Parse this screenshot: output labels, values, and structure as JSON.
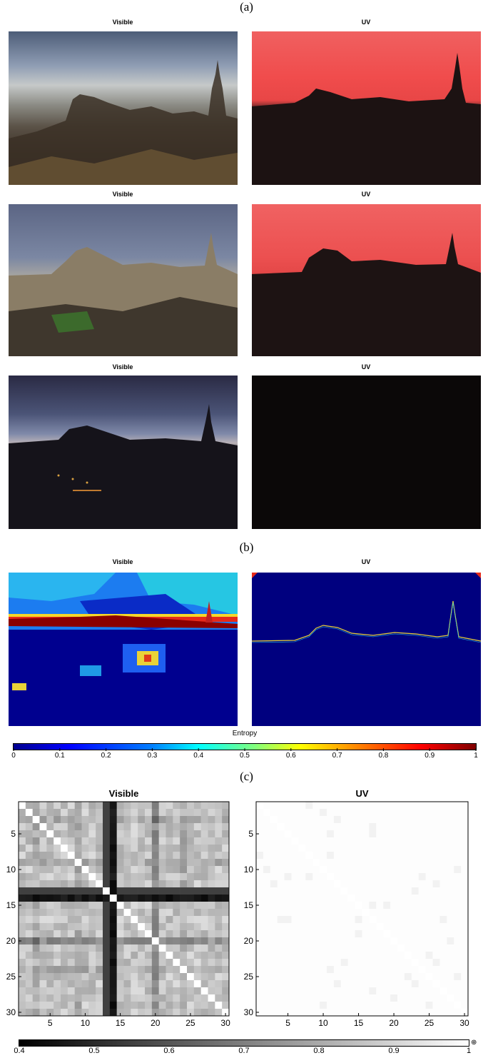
{
  "panels": {
    "a": "(a)",
    "b": "(b)",
    "c": "(c)"
  },
  "photo_titles": {
    "visible": "Visible",
    "uv": "UV"
  },
  "entropy": {
    "label": "Entropy",
    "ticks": [
      "0",
      "0.1",
      "0.2",
      "0.3",
      "0.4",
      "0.5",
      "0.6",
      "0.7",
      "0.8",
      "0.9",
      "1"
    ]
  },
  "matrix": {
    "visible_title": "Visible",
    "uv_title": "UV",
    "y_ticks": [
      "5",
      "10",
      "15",
      "20",
      "25",
      "30"
    ],
    "x_ticks": [
      "5",
      "10",
      "15",
      "20",
      "25",
      "30"
    ],
    "colorbar_ticks": [
      "0.4",
      "0.5",
      "0.6",
      "0.7",
      "0.8",
      "0.9",
      "1"
    ]
  },
  "chart_data": {
    "type": "heatmap",
    "title": "",
    "matrices": [
      {
        "name": "Visible",
        "size": 30,
        "description_range": [
          0.4,
          1
        ]
      },
      {
        "name": "UV",
        "size": 30,
        "description_range": [
          0.4,
          1
        ]
      }
    ],
    "xlim": [
      1,
      30
    ],
    "ylim": [
      1,
      30
    ],
    "colorbar_range": [
      0.4,
      1
    ]
  },
  "colors": {
    "uv_red": "#f05050",
    "night_dark": "#0b0808",
    "entropy_low": "#00008f",
    "entropy_high": "#800000"
  }
}
